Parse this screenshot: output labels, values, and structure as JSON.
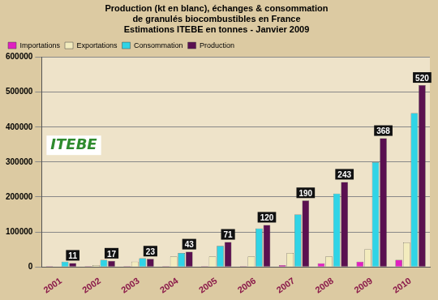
{
  "chart_data": {
    "type": "bar",
    "title": [
      "Production (kt en blanc), échanges & consommation",
      "de granulés biocombustibles en France",
      "Estimations ITEBE en tonnes - Janvier 2009"
    ],
    "annotations": [
      "ITEBE"
    ],
    "categories": [
      "2001",
      "2002",
      "2003",
      "2004",
      "2005",
      "2006",
      "2007",
      "2008",
      "2009",
      "2010"
    ],
    "series": [
      {
        "name": "Importations",
        "color": "#e020c0",
        "values": [
          2000,
          2000,
          2000,
          2000,
          2000,
          2000,
          5000,
          10000,
          15000,
          20000
        ]
      },
      {
        "name": "Exportations",
        "color": "#f3ecbe",
        "values": [
          0,
          5000,
          15000,
          30000,
          30000,
          30000,
          40000,
          30000,
          50000,
          70000
        ]
      },
      {
        "name": "Consommation",
        "color": "#30d4e6",
        "values": [
          15000,
          20000,
          25000,
          40000,
          60000,
          110000,
          150000,
          210000,
          300000,
          440000
        ]
      },
      {
        "name": "Production",
        "color": "#5a1050",
        "values": [
          11000,
          17000,
          23000,
          43000,
          71000,
          120000,
          190000,
          243000,
          368000,
          520000
        ],
        "value_labels": [
          "11",
          "17",
          "23",
          "43",
          "71",
          "120",
          "190",
          "243",
          "368",
          "520"
        ]
      }
    ],
    "ylim": [
      0,
      600000
    ],
    "yticks": [
      0,
      100000,
      200000,
      300000,
      400000,
      500000,
      600000
    ],
    "grid": true,
    "legend": "top-left"
  }
}
